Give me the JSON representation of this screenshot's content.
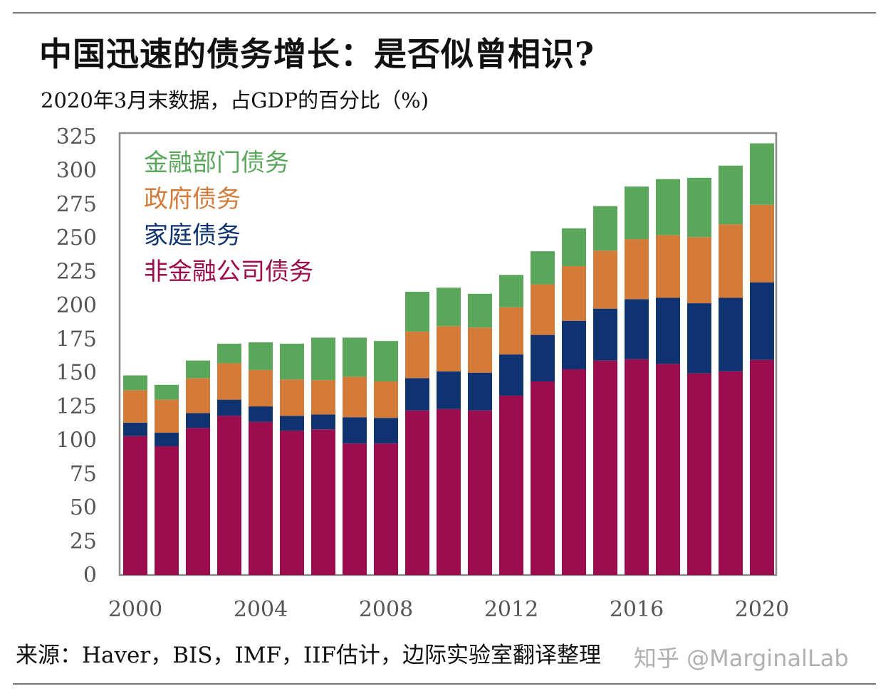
{
  "header": {
    "title": "中国迅速的债务增长：是否似曾相识?",
    "subtitle": "2020年3月末数据，占GDP的百分比（%)"
  },
  "footer": {
    "source": "来源：Haver，BIS，IMF，IIF估计，边际实验室翻译整理",
    "watermark": "知乎 @MarginalLab"
  },
  "chart_data": {
    "type": "bar",
    "stacked": true,
    "title": "",
    "xlabel": "",
    "ylabel": "",
    "ylim": [
      0,
      325
    ],
    "yticks": [
      0,
      25,
      50,
      75,
      100,
      125,
      150,
      175,
      200,
      225,
      250,
      275,
      300,
      325
    ],
    "categories": [
      2000,
      2001,
      2002,
      2003,
      2004,
      2005,
      2006,
      2007,
      2008,
      2009,
      2010,
      2011,
      2012,
      2013,
      2014,
      2015,
      2016,
      2017,
      2018,
      2019,
      2020
    ],
    "xtick_labels": [
      "2000",
      "2004",
      "2008",
      "2012",
      "2016",
      "2020"
    ],
    "grid": false,
    "legend_position": "top-left",
    "series": [
      {
        "name": "非金融公司债务",
        "color": "#9b0d4d",
        "values": [
          103,
          95.5,
          109,
          118,
          113.5,
          107,
          108,
          97.5,
          97.5,
          122,
          123,
          122,
          133,
          143.5,
          152.5,
          159,
          160,
          156.5,
          149.5,
          151,
          159.5
        ]
      },
      {
        "name": "家庭债务",
        "color": "#0e3370",
        "values": [
          10,
          10,
          11,
          12,
          11.5,
          11,
          11,
          19.5,
          19,
          24,
          28,
          28,
          30.5,
          34.5,
          36,
          38.5,
          44.5,
          49,
          52,
          54.5,
          57.5
        ]
      },
      {
        "name": "政府债务",
        "color": "#d47b3a",
        "values": [
          24,
          24.5,
          26,
          27,
          27,
          27,
          25.5,
          30,
          27,
          34.5,
          33.5,
          33.5,
          35,
          37.5,
          40.5,
          43,
          44.5,
          46.5,
          49,
          54.5,
          57.5
        ]
      },
      {
        "name": "金融部门债务",
        "color": "#5aa65a",
        "values": [
          11,
          11,
          13,
          14.5,
          20.5,
          26.5,
          31.5,
          29,
          30,
          29.5,
          28.5,
          25,
          24,
          24.5,
          28,
          33,
          39,
          41.5,
          44,
          43.5,
          45.5
        ]
      }
    ],
    "legend_order": [
      3,
      2,
      1,
      0
    ]
  }
}
